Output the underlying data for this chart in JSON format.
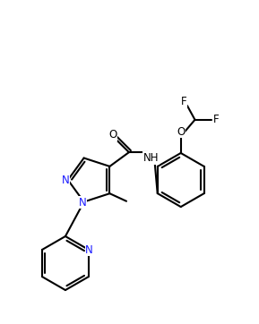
{
  "background_color": "#ffffff",
  "line_color": "#000000",
  "line_width": 1.5,
  "figsize": [
    2.89,
    3.62
  ],
  "dpi": 100,
  "xlim": [
    0,
    10
  ],
  "ylim": [
    0,
    12.5
  ]
}
